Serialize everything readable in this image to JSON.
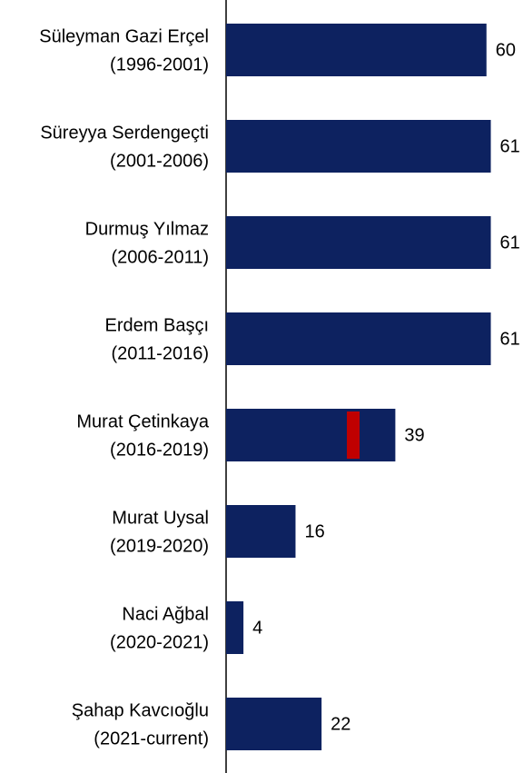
{
  "chart_data": {
    "type": "bar",
    "orientation": "horizontal",
    "categories": [
      [
        "Süleyman Gazi Erçel",
        "(1996-2001)"
      ],
      [
        "Süreyya Serdengeçti",
        "(2001-2006)"
      ],
      [
        "Durmuş Yılmaz",
        "(2006-2011)"
      ],
      [
        "Erdem Başçı",
        "(2011-2016)"
      ],
      [
        "Murat Çetinkaya",
        "(2016-2019)"
      ],
      [
        "Murat Uysal",
        "(2019-2020)"
      ],
      [
        "Naci Ağbal",
        "(2020-2021)"
      ],
      [
        "Şahap Kavcıoğlu",
        "(2021-current)"
      ]
    ],
    "values": [
      60,
      61,
      61,
      61,
      39,
      16,
      4,
      22
    ],
    "color": "#0d2260",
    "marker_values": [
      null,
      null,
      null,
      null,
      29.3,
      null,
      null,
      null
    ],
    "marker_color": "#c00000",
    "xlim": [
      0,
      68
    ]
  }
}
